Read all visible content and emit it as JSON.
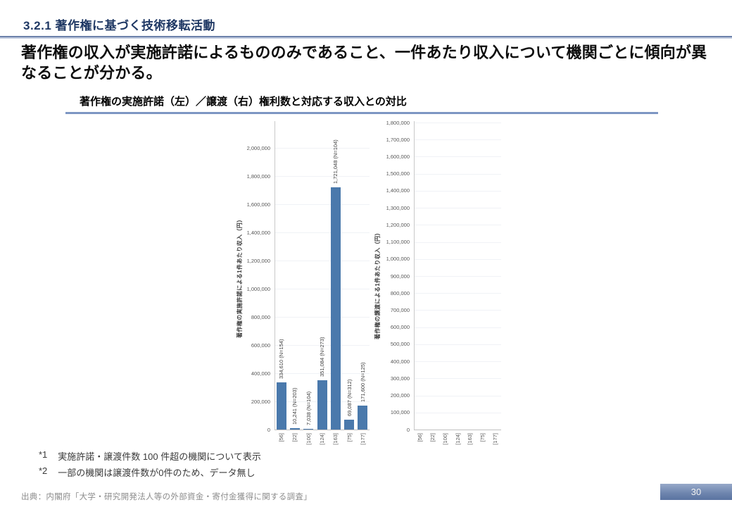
{
  "header": {
    "section_title": "3.2.1 著作権に基づく技術移転活動",
    "main_message": "著作権の収入が実施許諾によるもののみであること、一件あたり収入について機関ごとに傾向が異なることが分かる。"
  },
  "chart_block": {
    "title": "著作権の実施許諾（左）／譲渡（右）権利数と対応する収入との対比"
  },
  "chart_data": [
    {
      "type": "bar",
      "ylabel": "著作権の実施許諾による1件あたり収入（円）",
      "xlabel": "",
      "categories": [
        "[56]",
        "[22]",
        "[100]",
        "[124]",
        "[163]",
        "[75]",
        "[177]"
      ],
      "values": [
        334610,
        10241,
        7038,
        351084,
        1721048,
        69087,
        171600
      ],
      "bar_labels": [
        "334,610 (N=154)",
        "10,241 (N=203)",
        "7,038 (N=104)",
        "351,084 (N=273)",
        "1,721,048 (N=104)",
        "69,087 (N=312)",
        "171,600 (N=125)"
      ],
      "ylim": [
        0,
        2200000
      ],
      "ytick_step": 200000,
      "ytick_max": 2000000,
      "grid": true,
      "legend": "none",
      "bar_color": "#4a79ac"
    },
    {
      "type": "bar",
      "ylabel": "著作権の譲渡による1件あたり収入（円）",
      "xlabel": "",
      "categories": [
        "[56]",
        "[22]",
        "[100]",
        "[124]",
        "[163]",
        "[75]",
        "[177]"
      ],
      "values": [
        null,
        null,
        null,
        null,
        null,
        null,
        null
      ],
      "bar_labels": [
        "",
        "",
        "",
        "",
        "",
        "",
        ""
      ],
      "no_data": true,
      "ylim": [
        0,
        1800000
      ],
      "ytick_step": 100000,
      "ytick_max": 1800000,
      "grid": true,
      "legend": "none",
      "bar_color": "#4a79ac"
    }
  ],
  "footnotes": [
    {
      "marker": "*1",
      "text": "実施許諾・譲渡件数 100 件超の機関について表示"
    },
    {
      "marker": "*2",
      "text": "一部の機関は譲渡件数が0件のため、データ無し"
    }
  ],
  "source": "出典：内閣府「大学・研究開発法人等の外部資金・寄付金獲得に関する調査」",
  "page_number": "30"
}
